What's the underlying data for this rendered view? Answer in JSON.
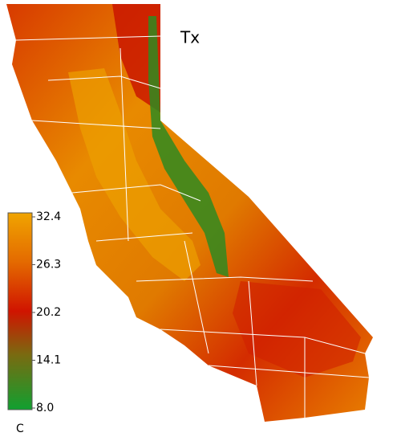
{
  "title": "Tx",
  "colorbar": {
    "lim": [
      8,
      32.4
    ],
    "ticks": [
      32.4,
      26.3,
      20.2,
      14.1,
      {
        "value": 8,
        "label": "8.0"
      }
    ],
    "unit": "C"
  }
}
